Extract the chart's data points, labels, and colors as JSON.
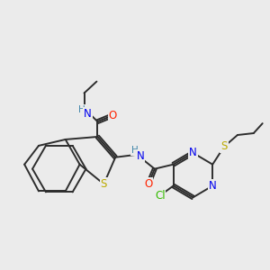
{
  "bg_color": "#ebebeb",
  "bond_color": "#2d2d2d",
  "bond_lw": 1.4,
  "atom_colors": {
    "N": "#0000ee",
    "O": "#ff2200",
    "S": "#bbaa00",
    "Cl": "#33bb00",
    "C": "#2d2d2d",
    "H": "#4488aa"
  },
  "font_size": 8.5
}
